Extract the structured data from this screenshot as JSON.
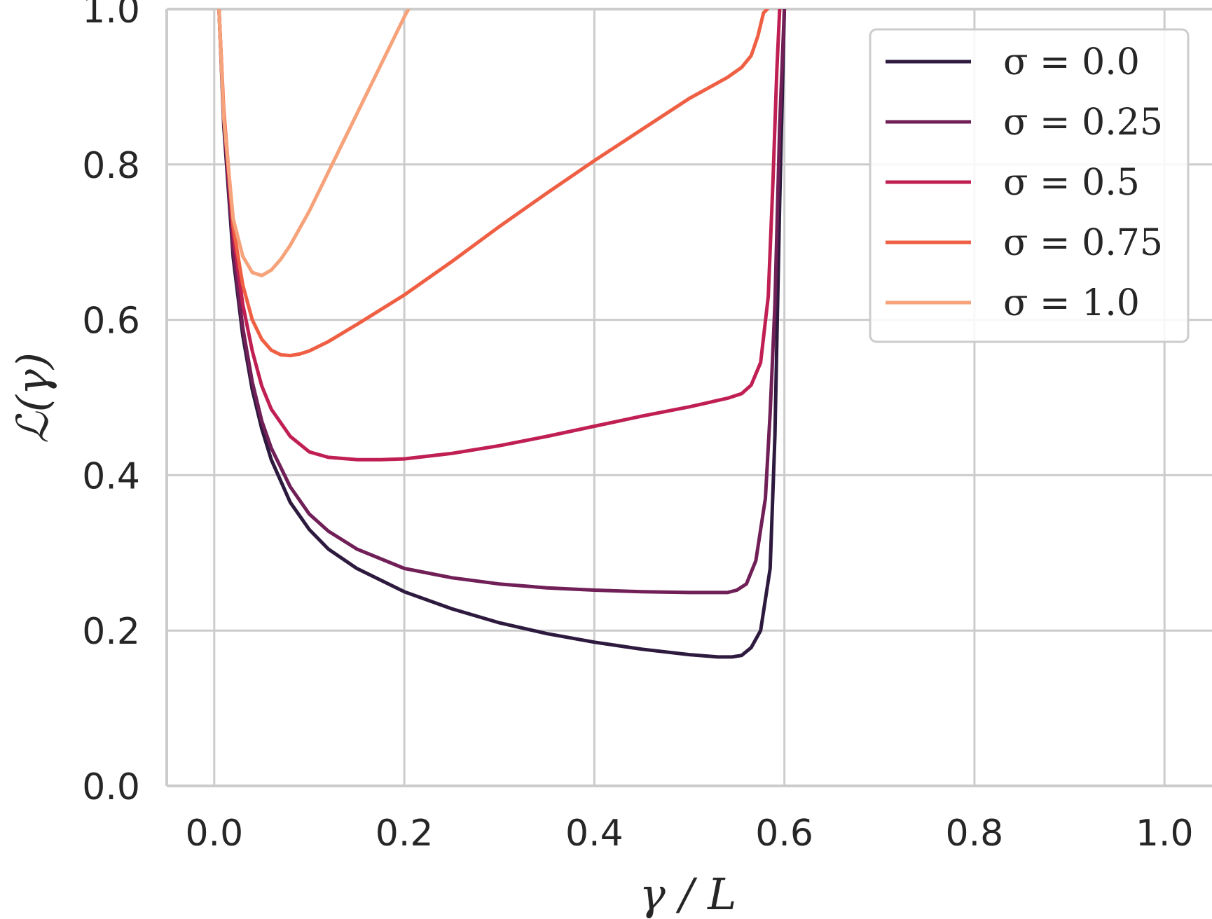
{
  "chart_data": {
    "type": "line",
    "xlabel": "γ / L",
    "ylabel": "ℒ(γ)",
    "xlim": [
      -0.05,
      1.05
    ],
    "ylim": [
      0.0,
      1.0
    ],
    "xticks": [
      0.0,
      0.2,
      0.4,
      0.6,
      0.8,
      1.0
    ],
    "xtick_labels": [
      "0.0",
      "0.2",
      "0.4",
      "0.6",
      "0.8",
      "1.0"
    ],
    "yticks": [
      0.0,
      0.2,
      0.4,
      0.6,
      0.8,
      1.0
    ],
    "ytick_labels": [
      "0.0",
      "0.2",
      "0.4",
      "0.6",
      "0.8",
      "1.0"
    ],
    "grid": true,
    "legend_position": "top-right",
    "series": [
      {
        "name": "σ = 0.0",
        "color": "#2d1a3e",
        "x": [
          0.005,
          0.01,
          0.02,
          0.03,
          0.04,
          0.05,
          0.06,
          0.08,
          0.1,
          0.12,
          0.15,
          0.2,
          0.25,
          0.3,
          0.35,
          0.4,
          0.45,
          0.5,
          0.53,
          0.545,
          0.555,
          0.565,
          0.575,
          0.585,
          0.59,
          0.595,
          0.6
        ],
        "y": [
          1.0,
          0.85,
          0.68,
          0.58,
          0.51,
          0.46,
          0.42,
          0.365,
          0.33,
          0.305,
          0.28,
          0.25,
          0.228,
          0.21,
          0.196,
          0.185,
          0.176,
          0.169,
          0.166,
          0.166,
          0.168,
          0.178,
          0.2,
          0.28,
          0.45,
          0.75,
          1.0
        ]
      },
      {
        "name": "σ = 0.25",
        "color": "#701f57",
        "x": [
          0.005,
          0.01,
          0.02,
          0.03,
          0.04,
          0.05,
          0.06,
          0.08,
          0.1,
          0.12,
          0.15,
          0.2,
          0.25,
          0.3,
          0.35,
          0.4,
          0.45,
          0.5,
          0.54,
          0.55,
          0.56,
          0.57,
          0.58,
          0.585,
          0.59,
          0.595,
          0.6
        ],
        "y": [
          1.0,
          0.86,
          0.69,
          0.59,
          0.52,
          0.47,
          0.435,
          0.385,
          0.35,
          0.328,
          0.305,
          0.28,
          0.268,
          0.26,
          0.255,
          0.252,
          0.25,
          0.249,
          0.249,
          0.252,
          0.26,
          0.29,
          0.37,
          0.48,
          0.62,
          0.85,
          1.0
        ]
      },
      {
        "name": "σ = 0.5",
        "color": "#c01f53",
        "x": [
          0.005,
          0.01,
          0.02,
          0.03,
          0.04,
          0.05,
          0.06,
          0.08,
          0.1,
          0.12,
          0.15,
          0.175,
          0.2,
          0.25,
          0.3,
          0.35,
          0.4,
          0.45,
          0.5,
          0.54,
          0.555,
          0.565,
          0.575,
          0.583,
          0.588,
          0.592,
          0.595
        ],
        "y": [
          1.0,
          0.86,
          0.71,
          0.62,
          0.56,
          0.515,
          0.485,
          0.45,
          0.43,
          0.423,
          0.42,
          0.42,
          0.421,
          0.428,
          0.438,
          0.45,
          0.463,
          0.476,
          0.488,
          0.499,
          0.505,
          0.516,
          0.545,
          0.63,
          0.78,
          0.92,
          1.0
        ]
      },
      {
        "name": "σ = 0.75",
        "color": "#ef5f43",
        "x": [
          0.005,
          0.01,
          0.02,
          0.03,
          0.04,
          0.05,
          0.06,
          0.07,
          0.08,
          0.09,
          0.1,
          0.12,
          0.15,
          0.2,
          0.25,
          0.3,
          0.35,
          0.4,
          0.45,
          0.5,
          0.54,
          0.555,
          0.565,
          0.572,
          0.578,
          0.582
        ],
        "y": [
          1.0,
          0.87,
          0.72,
          0.645,
          0.6,
          0.575,
          0.561,
          0.555,
          0.554,
          0.556,
          0.56,
          0.572,
          0.594,
          0.632,
          0.675,
          0.72,
          0.763,
          0.805,
          0.845,
          0.885,
          0.912,
          0.925,
          0.94,
          0.965,
          0.995,
          1.0
        ]
      },
      {
        "name": "σ = 1.0",
        "color": "#f6a27a",
        "x": [
          0.005,
          0.01,
          0.02,
          0.03,
          0.04,
          0.05,
          0.06,
          0.07,
          0.08,
          0.1,
          0.12,
          0.15,
          0.18,
          0.2,
          0.22,
          0.24
        ],
        "y": [
          1.0,
          0.86,
          0.73,
          0.682,
          0.661,
          0.657,
          0.664,
          0.678,
          0.696,
          0.74,
          0.79,
          0.865,
          0.94,
          0.99,
          1.035,
          1.08
        ]
      }
    ]
  }
}
